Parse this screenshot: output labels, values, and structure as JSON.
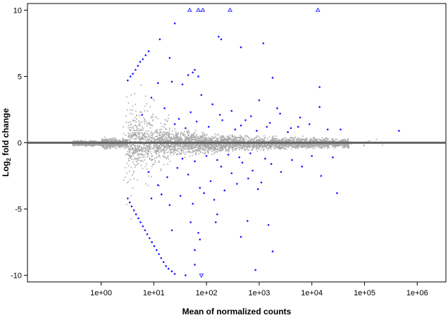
{
  "chart_data": {
    "type": "scatter",
    "subtype": "MA-plot",
    "title": "",
    "xlabel": "Mean of normalized counts",
    "ylabel": {
      "prefix": "Log",
      "subscript": "2",
      "suffix": " fold change"
    },
    "x_scale": "log10",
    "xlim": [
      0.04,
      3500000
    ],
    "ylim": [
      -10.5,
      10.5
    ],
    "x_ticks": [
      {
        "value": 1,
        "label": "1e+00"
      },
      {
        "value": 10,
        "label": "1e+01"
      },
      {
        "value": 100,
        "label": "1e+02"
      },
      {
        "value": 1000,
        "label": "1e+03"
      },
      {
        "value": 10000,
        "label": "1e+04"
      },
      {
        "value": 100000,
        "label": "1e+05"
      },
      {
        "value": 1000000,
        "label": "1e+06"
      }
    ],
    "y_ticks": [
      {
        "value": -10,
        "label": "-10"
      },
      {
        "value": -5,
        "label": "-5"
      },
      {
        "value": 0,
        "label": "0"
      },
      {
        "value": 5,
        "label": "5"
      },
      {
        "value": 10,
        "label": "10"
      }
    ],
    "reference_line": {
      "y": 0,
      "color": "#666666"
    },
    "legend": "none",
    "grid": false,
    "colors": {
      "not_significant": "#a8a8a8",
      "significant": "#1a1aff",
      "baseline": "#666666"
    },
    "series": [
      {
        "name": "",
        "marker": "triangle-up-open",
        "points": [
          [
            48,
            10
          ],
          [
            70,
            10
          ],
          [
            85,
            10
          ],
          [
            280,
            10
          ],
          [
            13000,
            10
          ]
        ]
      },
      {
        "name": "",
        "marker": "triangle-down-open",
        "points": [
          [
            80,
            -10
          ]
        ]
      },
      {
        "name": "",
        "marker": "dot",
        "points": [
          [
            3.2,
            4.7
          ],
          [
            3.6,
            5.0
          ],
          [
            4.0,
            5.2
          ],
          [
            4.5,
            5.5
          ],
          [
            5.0,
            5.8
          ],
          [
            5.5,
            6.1
          ],
          [
            6.2,
            6.3
          ],
          [
            7.0,
            6.6
          ],
          [
            8.0,
            6.9
          ],
          [
            13,
            7.8
          ],
          [
            20,
            6.4
          ],
          [
            25,
            9.0
          ],
          [
            170,
            8.0
          ],
          [
            190,
            7.8
          ],
          [
            1200,
            7.5
          ],
          [
            450,
            7.2
          ],
          [
            60,
            5.5
          ],
          [
            55,
            5.3
          ],
          [
            45,
            5.1
          ],
          [
            70,
            5.0
          ],
          [
            1800,
            4.9
          ],
          [
            12,
            4.5
          ],
          [
            22,
            4.6
          ],
          [
            35,
            4.4
          ],
          [
            14000,
            4.2
          ],
          [
            3.2,
            -4.2
          ],
          [
            3.5,
            -4.5
          ],
          [
            3.8,
            -4.8
          ],
          [
            4.2,
            -5.1
          ],
          [
            4.6,
            -5.4
          ],
          [
            5.1,
            -5.7
          ],
          [
            5.6,
            -6.0
          ],
          [
            6.2,
            -6.3
          ],
          [
            6.8,
            -6.6
          ],
          [
            7.5,
            -6.9
          ],
          [
            8.3,
            -7.2
          ],
          [
            9.2,
            -7.5
          ],
          [
            10.2,
            -7.8
          ],
          [
            11.3,
            -8.1
          ],
          [
            12.5,
            -8.4
          ],
          [
            13.8,
            -8.7
          ],
          [
            15.3,
            -9.0
          ],
          [
            17,
            -9.3
          ],
          [
            19,
            -9.5
          ],
          [
            22,
            -9.7
          ],
          [
            25,
            -9.9
          ],
          [
            40,
            -10
          ],
          [
            70,
            -6.8
          ],
          [
            75,
            -7.3
          ],
          [
            60,
            -8.1
          ],
          [
            60,
            -9.2
          ],
          [
            450,
            -7.1
          ],
          [
            600,
            -5.9
          ],
          [
            1800,
            -8.2
          ],
          [
            850,
            -9.6
          ],
          [
            22,
            -6.6
          ],
          [
            50,
            -6.0
          ],
          [
            150,
            -6.0
          ],
          [
            160,
            -5.4
          ],
          [
            1500,
            -6.2
          ],
          [
            30000,
            -3.8
          ],
          [
            6,
            2.1
          ],
          [
            9,
            3.4
          ],
          [
            16,
            2.6
          ],
          [
            30,
            1.8
          ],
          [
            50,
            2.3
          ],
          [
            80,
            3.6
          ],
          [
            130,
            2.9
          ],
          [
            200,
            1.7
          ],
          [
            300,
            2.4
          ],
          [
            450,
            1.3
          ],
          [
            700,
            2.0
          ],
          [
            1000,
            3.2
          ],
          [
            1600,
            1.5
          ],
          [
            2500,
            2.2
          ],
          [
            4000,
            1.1
          ],
          [
            6000,
            1.9
          ],
          [
            9000,
            1.4
          ],
          [
            14000,
            2.7
          ],
          [
            20000,
            1.0
          ],
          [
            35000,
            1.0
          ],
          [
            450000,
            0.9
          ],
          [
            25,
            1.4
          ],
          [
            40,
            1.1
          ],
          [
            65,
            1.6
          ],
          [
            110,
            1.2
          ],
          [
            180,
            2.1
          ],
          [
            350,
            1.0
          ],
          [
            550,
            1.7
          ],
          [
            900,
            0.9
          ],
          [
            1400,
            1.2
          ],
          [
            2200,
            2.6
          ],
          [
            3500,
            0.8
          ],
          [
            5500,
            1.2
          ],
          [
            8,
            -2.2
          ],
          [
            12,
            -3.2
          ],
          [
            18,
            -2.6
          ],
          [
            28,
            -1.9
          ],
          [
            45,
            -2.4
          ],
          [
            75,
            -3.4
          ],
          [
            120,
            -2.9
          ],
          [
            190,
            -1.8
          ],
          [
            300,
            -2.3
          ],
          [
            480,
            -1.5
          ],
          [
            750,
            -2.1
          ],
          [
            1100,
            -3.0
          ],
          [
            1700,
            -1.6
          ],
          [
            2600,
            -2.2
          ],
          [
            4200,
            -1.3
          ],
          [
            6500,
            -1.8
          ],
          [
            10000,
            -1.0
          ],
          [
            15000,
            -2.5
          ],
          [
            25000,
            -1.1
          ],
          [
            9,
            -4.2
          ],
          [
            14,
            -3.9
          ],
          [
            20,
            -4.7
          ],
          [
            32,
            -4.0
          ],
          [
            55,
            -4.6
          ],
          [
            90,
            -3.8
          ],
          [
            140,
            -4.3
          ],
          [
            220,
            -3.6
          ],
          [
            380,
            -3.1
          ],
          [
            620,
            -2.7
          ],
          [
            950,
            -3.5
          ],
          [
            35,
            -1.2
          ],
          [
            60,
            -1.4
          ],
          [
            100,
            -1.0
          ],
          [
            160,
            -1.3
          ],
          [
            260,
            -0.9
          ],
          [
            420,
            -1.1
          ],
          [
            680,
            -0.8
          ],
          [
            1300,
            -1.2
          ]
        ]
      }
    ]
  }
}
